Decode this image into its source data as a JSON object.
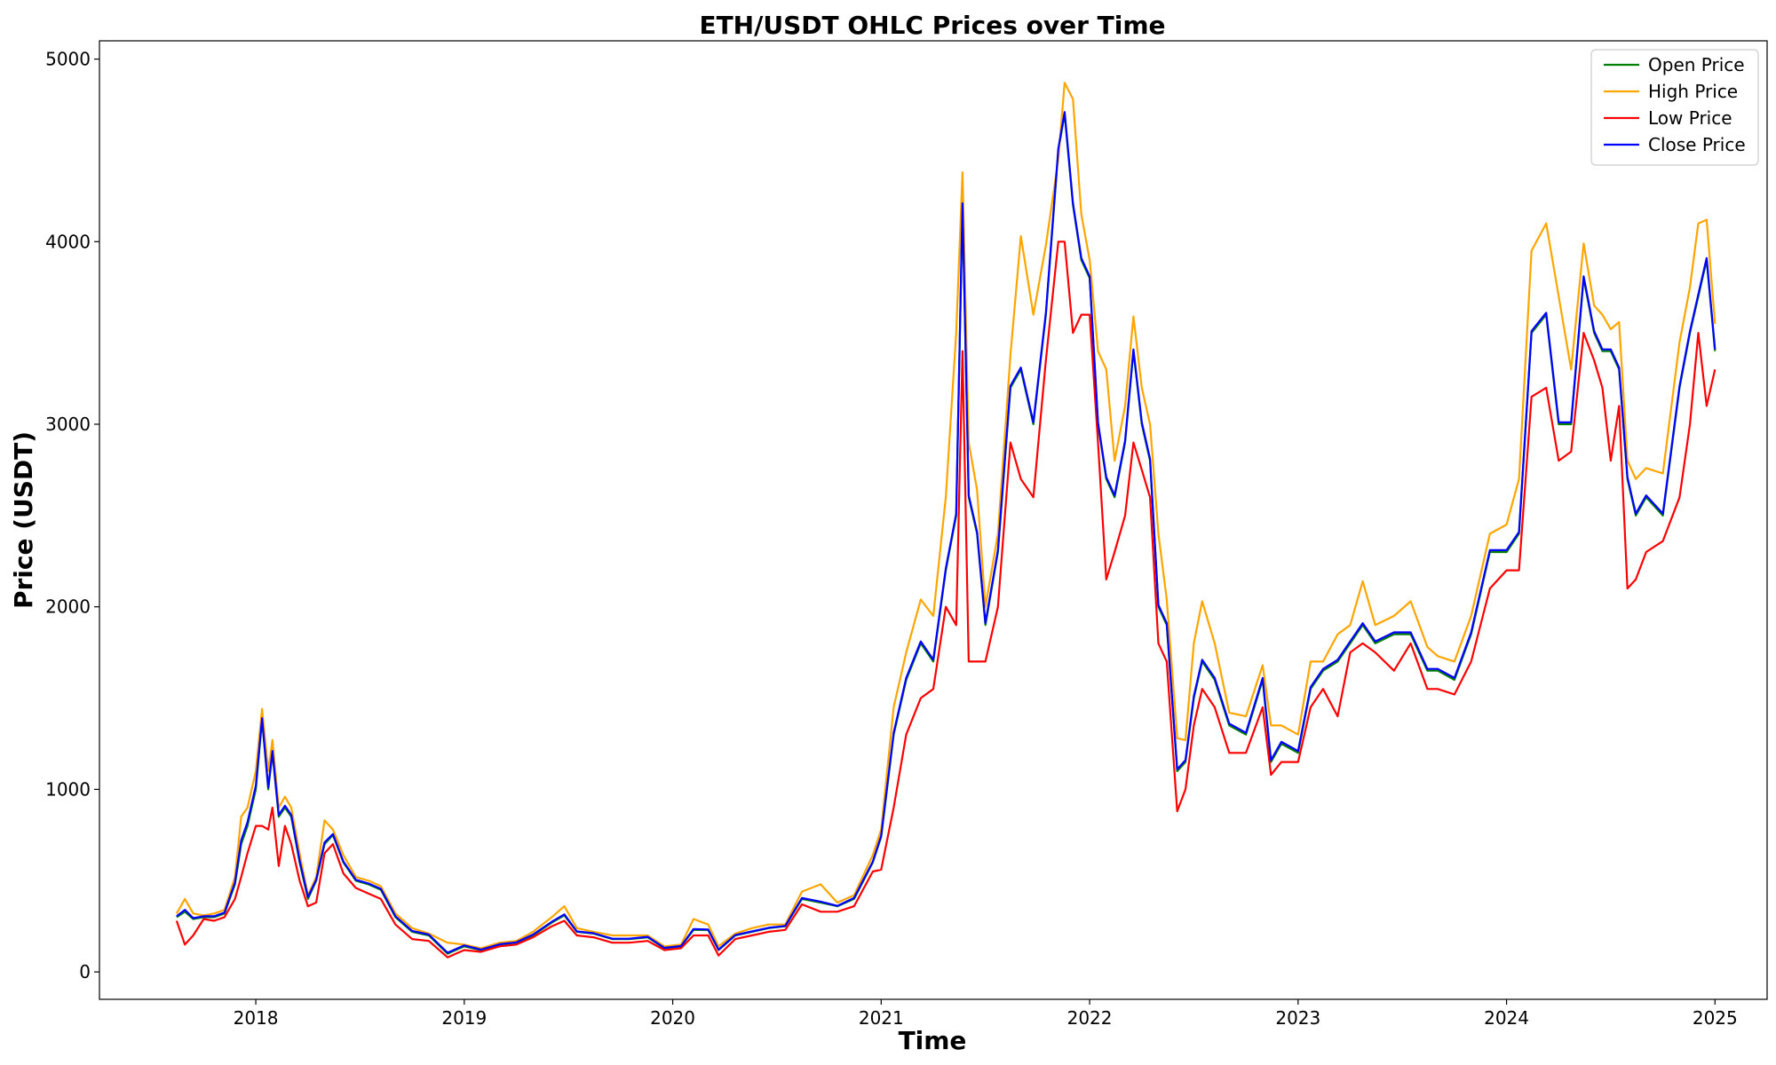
{
  "chart_data": {
    "type": "line",
    "title": "ETH/USDT OHLC Prices over Time",
    "xlabel": "Time",
    "ylabel": "Price (USDT)",
    "xlim": [
      2017.25,
      2025.25
    ],
    "ylim": [
      -150,
      5100
    ],
    "x_ticks": [
      2018,
      2019,
      2020,
      2021,
      2022,
      2023,
      2024,
      2025
    ],
    "x_tick_labels": [
      "2018",
      "2019",
      "2020",
      "2021",
      "2022",
      "2023",
      "2024",
      "2025"
    ],
    "y_ticks": [
      0,
      1000,
      2000,
      3000,
      4000,
      5000
    ],
    "y_tick_labels": [
      "0",
      "1000",
      "2000",
      "3000",
      "4000",
      "5000"
    ],
    "grid": false,
    "legend_position": "top-right",
    "x": [
      2017.62,
      2017.66,
      2017.7,
      2017.75,
      2017.8,
      2017.85,
      2017.9,
      2017.93,
      2017.96,
      2018.0,
      2018.03,
      2018.06,
      2018.08,
      2018.11,
      2018.14,
      2018.17,
      2018.21,
      2018.25,
      2018.29,
      2018.33,
      2018.37,
      2018.42,
      2018.48,
      2018.54,
      2018.6,
      2018.67,
      2018.75,
      2018.83,
      2018.92,
      2019.0,
      2019.08,
      2019.17,
      2019.25,
      2019.33,
      2019.42,
      2019.48,
      2019.54,
      2019.62,
      2019.71,
      2019.79,
      2019.88,
      2019.96,
      2020.04,
      2020.1,
      2020.17,
      2020.22,
      2020.3,
      2020.38,
      2020.46,
      2020.54,
      2020.62,
      2020.71,
      2020.79,
      2020.87,
      2020.96,
      2021.0,
      2021.06,
      2021.12,
      2021.19,
      2021.25,
      2021.31,
      2021.36,
      2021.39,
      2021.42,
      2021.46,
      2021.5,
      2021.56,
      2021.62,
      2021.67,
      2021.73,
      2021.79,
      2021.85,
      2021.88,
      2021.92,
      2021.96,
      2022.0,
      2022.04,
      2022.08,
      2022.12,
      2022.17,
      2022.21,
      2022.25,
      2022.29,
      2022.33,
      2022.37,
      2022.42,
      2022.46,
      2022.5,
      2022.54,
      2022.6,
      2022.67,
      2022.75,
      2022.83,
      2022.87,
      2022.92,
      2023.0,
      2023.06,
      2023.12,
      2023.19,
      2023.25,
      2023.31,
      2023.37,
      2023.46,
      2023.54,
      2023.62,
      2023.67,
      2023.75,
      2023.83,
      2023.92,
      2024.0,
      2024.06,
      2024.12,
      2024.19,
      2024.25,
      2024.31,
      2024.37,
      2024.42,
      2024.46,
      2024.5,
      2024.54,
      2024.58,
      2024.62,
      2024.67,
      2024.75,
      2024.83,
      2024.88,
      2024.92,
      2024.96,
      2025.0
    ],
    "series": [
      {
        "name": "Open Price",
        "color": "#008000",
        "values": [
          300,
          330,
          290,
          300,
          300,
          320,
          480,
          700,
          800,
          1000,
          1380,
          1000,
          1200,
          850,
          900,
          850,
          600,
          400,
          500,
          700,
          750,
          600,
          500,
          480,
          450,
          300,
          220,
          200,
          100,
          140,
          120,
          150,
          160,
          200,
          270,
          310,
          220,
          210,
          180,
          180,
          190,
          130,
          140,
          230,
          230,
          120,
          200,
          220,
          240,
          250,
          400,
          380,
          360,
          400,
          600,
          740,
          1300,
          1600,
          1800,
          1700,
          2200,
          2500,
          4200,
          2600,
          2400,
          1900,
          2300,
          3200,
          3300,
          3000,
          3600,
          4500,
          4700,
          4200,
          3900,
          3800,
          3000,
          2700,
          2600,
          2900,
          3400,
          3000,
          2800,
          2000,
          1900,
          1100,
          1150,
          1500,
          1700,
          1600,
          1350,
          1300,
          1600,
          1150,
          1250,
          1200,
          1550,
          1650,
          1700,
          1800,
          1900,
          1800,
          1850,
          1850,
          1650,
          1650,
          1600,
          1850,
          2300,
          2300,
          2400,
          3500,
          3600,
          3000,
          3000,
          3800,
          3500,
          3400,
          3400,
          3300,
          2700,
          2500,
          2600,
          2500,
          3200,
          3500,
          3700,
          3900,
          3400
        ]
      },
      {
        "name": "High Price",
        "color": "#ffa500",
        "values": [
          320,
          400,
          320,
          310,
          320,
          340,
          520,
          850,
          900,
          1100,
          1440,
          1100,
          1270,
          900,
          960,
          900,
          650,
          420,
          520,
          830,
          780,
          640,
          520,
          500,
          470,
          320,
          240,
          210,
          160,
          150,
          130,
          160,
          170,
          220,
          300,
          360,
          240,
          220,
          200,
          200,
          200,
          140,
          150,
          290,
          260,
          140,
          210,
          240,
          260,
          260,
          440,
          480,
          380,
          420,
          640,
          780,
          1450,
          1750,
          2040,
          1950,
          2600,
          3500,
          4380,
          2900,
          2640,
          2000,
          2400,
          3380,
          4030,
          3600,
          3980,
          4450,
          4870,
          4780,
          4150,
          3900,
          3400,
          3300,
          2800,
          3100,
          3590,
          3200,
          3000,
          2400,
          2040,
          1280,
          1270,
          1800,
          2030,
          1800,
          1420,
          1400,
          1680,
          1350,
          1350,
          1300,
          1700,
          1700,
          1850,
          1900,
          2140,
          1900,
          1950,
          2030,
          1780,
          1730,
          1700,
          1950,
          2400,
          2450,
          2700,
          3950,
          4100,
          3700,
          3300,
          3990,
          3650,
          3600,
          3520,
          3560,
          2800,
          2700,
          2760,
          2730,
          3450,
          3750,
          4100,
          4120,
          3550
        ]
      },
      {
        "name": "Low Price",
        "color": "#ff0000",
        "values": [
          280,
          150,
          200,
          290,
          280,
          300,
          400,
          520,
          650,
          800,
          800,
          780,
          900,
          580,
          800,
          700,
          500,
          360,
          380,
          650,
          700,
          540,
          460,
          430,
          400,
          260,
          180,
          170,
          80,
          120,
          110,
          140,
          150,
          190,
          250,
          280,
          200,
          190,
          160,
          160,
          170,
          120,
          130,
          200,
          200,
          90,
          180,
          200,
          220,
          230,
          370,
          330,
          330,
          360,
          550,
          560,
          900,
          1300,
          1500,
          1550,
          2000,
          1900,
          3400,
          1700,
          1700,
          1700,
          2000,
          2900,
          2700,
          2600,
          3350,
          4000,
          4000,
          3500,
          3600,
          3600,
          2900,
          2150,
          2300,
          2500,
          2900,
          2750,
          2600,
          1800,
          1700,
          880,
          1000,
          1350,
          1550,
          1450,
          1200,
          1200,
          1450,
          1080,
          1150,
          1150,
          1450,
          1550,
          1400,
          1750,
          1800,
          1750,
          1650,
          1800,
          1550,
          1550,
          1520,
          1700,
          2100,
          2200,
          2200,
          3150,
          3200,
          2800,
          2850,
          3500,
          3350,
          3200,
          2800,
          3100,
          2100,
          2150,
          2300,
          2360,
          2600,
          3000,
          3500,
          3100,
          3300
        ]
      },
      {
        "name": "Close Price",
        "color": "#0000ff",
        "values": [
          305,
          340,
          295,
          305,
          305,
          325,
          490,
          720,
          820,
          1020,
          1390,
          1010,
          1210,
          860,
          910,
          860,
          610,
          410,
          505,
          710,
          755,
          605,
          505,
          485,
          455,
          305,
          225,
          205,
          105,
          145,
          122,
          152,
          162,
          205,
          275,
          315,
          222,
          212,
          182,
          182,
          192,
          132,
          142,
          235,
          232,
          122,
          202,
          222,
          242,
          252,
          405,
          385,
          362,
          405,
          605,
          745,
          1310,
          1610,
          1810,
          1710,
          2210,
          2510,
          4210,
          2610,
          2410,
          1910,
          2310,
          3210,
          3310,
          3010,
          3610,
          4510,
          4710,
          4210,
          3910,
          3810,
          3010,
          2710,
          2610,
          2910,
          3410,
          3010,
          2810,
          2010,
          1910,
          1110,
          1160,
          1510,
          1710,
          1610,
          1360,
          1310,
          1610,
          1160,
          1260,
          1210,
          1560,
          1660,
          1710,
          1810,
          1910,
          1810,
          1860,
          1860,
          1660,
          1660,
          1610,
          1860,
          2310,
          2310,
          2410,
          3510,
          3610,
          3010,
          3010,
          3810,
          3510,
          3410,
          3410,
          3310,
          2710,
          2510,
          2610,
          2510,
          3210,
          3510,
          3710,
          3910,
          3410
        ]
      }
    ]
  }
}
